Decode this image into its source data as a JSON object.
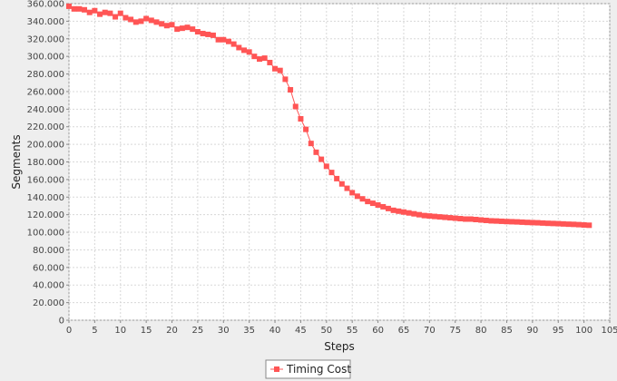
{
  "chart_data": {
    "type": "line",
    "title": "",
    "xlabel": "Steps",
    "ylabel": "Segments",
    "xlim": [
      0,
      105
    ],
    "ylim": [
      0,
      360000
    ],
    "grid": true,
    "legend_position": "bottom-center",
    "x_ticks": [
      "0",
      "5",
      "10",
      "15",
      "20",
      "25",
      "30",
      "35",
      "40",
      "45",
      "50",
      "55",
      "60",
      "65",
      "70",
      "75",
      "80",
      "85",
      "90",
      "95",
      "100",
      "105"
    ],
    "y_ticks": [
      "0",
      "20.000",
      "40.000",
      "60.000",
      "80.000",
      "100.000",
      "120.000",
      "140.000",
      "160.000",
      "180.000",
      "200.000",
      "220.000",
      "240.000",
      "260.000",
      "280.000",
      "300.000",
      "320.000",
      "340.000",
      "360.000"
    ],
    "x_tick_values": [
      0,
      5,
      10,
      15,
      20,
      25,
      30,
      35,
      40,
      45,
      50,
      55,
      60,
      65,
      70,
      75,
      80,
      85,
      90,
      95,
      100,
      105
    ],
    "y_tick_values": [
      0,
      20000,
      40000,
      60000,
      80000,
      100000,
      120000,
      140000,
      160000,
      180000,
      200000,
      220000,
      240000,
      260000,
      280000,
      300000,
      320000,
      340000,
      360000
    ],
    "series": [
      {
        "name": "Timing Cost",
        "color": "#ff5555",
        "marker": "square",
        "x": [
          0,
          1,
          2,
          3,
          4,
          5,
          6,
          7,
          8,
          9,
          10,
          11,
          12,
          13,
          14,
          15,
          16,
          17,
          18,
          19,
          20,
          21,
          22,
          23,
          24,
          25,
          26,
          27,
          28,
          29,
          30,
          31,
          32,
          33,
          34,
          35,
          36,
          37,
          38,
          39,
          40,
          41,
          42,
          43,
          44,
          45,
          46,
          47,
          48,
          49,
          50,
          51,
          52,
          53,
          54,
          55,
          56,
          57,
          58,
          59,
          60,
          61,
          62,
          63,
          64,
          65,
          66,
          67,
          68,
          69,
          70,
          71,
          72,
          73,
          74,
          75,
          76,
          77,
          78,
          79,
          80,
          81,
          82,
          83,
          84,
          85,
          86,
          87,
          88,
          89,
          90,
          91,
          92,
          93,
          94,
          95,
          96,
          97,
          98,
          99,
          100,
          101
        ],
        "y": [
          357000,
          354000,
          354000,
          353000,
          350000,
          352000,
          348000,
          350000,
          349000,
          345000,
          349000,
          344000,
          342000,
          339000,
          340000,
          343000,
          341000,
          339000,
          337000,
          335000,
          336000,
          331000,
          332000,
          333000,
          331000,
          328000,
          326000,
          325000,
          324000,
          319000,
          319000,
          317000,
          314000,
          310000,
          307000,
          305000,
          300000,
          297000,
          298000,
          293000,
          286000,
          284000,
          274000,
          262000,
          243000,
          229000,
          217000,
          201000,
          191000,
          183000,
          175000,
          168000,
          161000,
          155000,
          150000,
          145000,
          141000,
          138000,
          135000,
          133000,
          131000,
          129000,
          127000,
          125000,
          124000,
          123000,
          122000,
          121000,
          120000,
          119000,
          118500,
          118000,
          117500,
          117000,
          116500,
          116000,
          115500,
          115000,
          115000,
          114500,
          114000,
          113500,
          113000,
          112800,
          112500,
          112200,
          112000,
          111800,
          111500,
          111200,
          111000,
          110800,
          110500,
          110200,
          110000,
          109800,
          109500,
          109200,
          109000,
          108700,
          108300,
          108000
        ]
      }
    ]
  }
}
